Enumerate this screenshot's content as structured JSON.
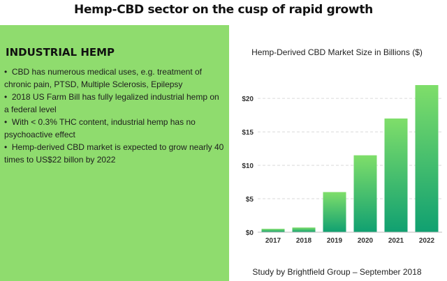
{
  "header": {
    "title": "Hemp-CBD sector on the cusp of rapid growth"
  },
  "panel": {
    "heading": "INDUSTRIAL HEMP",
    "bullets": [
      "CBD has numerous medical uses, e.g. treatment of chronic pain, PTSD, Multiple Sclerosis, Epilepsy",
      "2018 US Farm Bill has fully legalized industrial hemp on a federal level",
      "With < 0.3% THC content, industrial hemp has no psychoactive effect",
      "Hemp-derived CBD market is expected to grow nearly 40 times to US$22 billon by 2022"
    ]
  },
  "chart_data": {
    "type": "bar",
    "title": "Hemp-Derived CBD Market Size in Billions ($)",
    "categories": [
      "2017",
      "2018",
      "2019",
      "2020",
      "2021",
      "2022"
    ],
    "values": [
      0.5,
      0.7,
      6,
      11.5,
      17,
      22
    ],
    "ylim": [
      0,
      22
    ],
    "yticks": [
      0,
      5,
      10,
      15,
      20
    ],
    "ytick_labels": [
      "$0",
      "$5",
      "$10",
      "$15",
      "$20"
    ],
    "grid": "horizontal dashed",
    "bar_gradient": [
      "#7fde6a",
      "#10a071"
    ]
  },
  "footer": {
    "source": "Study by Brightfield Group – September 2018"
  }
}
